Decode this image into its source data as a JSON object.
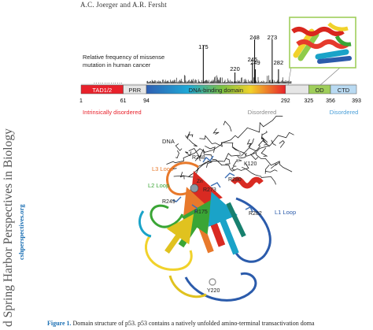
{
  "header": {
    "authors": "A.C. Joerger and A.R. Fersht"
  },
  "sidebar": {
    "journal_fragment": "d Spring Harbor Perspectives in Biology",
    "url_fragment": "cshperspectives.org"
  },
  "figure": {
    "histogram_label_line1": "Relative frequency of missense",
    "histogram_label_line2": "mutation in human cancer",
    "hotspots": [
      {
        "label": "175",
        "residue": 175
      },
      {
        "label": "220",
        "residue": 220
      },
      {
        "label": "245",
        "residue": 245
      },
      {
        "label": "248",
        "residue": 248
      },
      {
        "label": "249",
        "residue": 249
      },
      {
        "label": "273",
        "residue": 273
      },
      {
        "label": "282",
        "residue": 282
      }
    ],
    "domains": [
      {
        "label": "TAD1/2",
        "start": 1,
        "end": 61,
        "color": "#e8212b"
      },
      {
        "label": "PRR",
        "start": 61,
        "end": 94,
        "color": "#e6e6e6"
      },
      {
        "label": "DNA-binding domain",
        "start": 94,
        "end": 292,
        "color": "gradient"
      },
      {
        "label": "",
        "start": 292,
        "end": 325,
        "color": "#e6e6e6"
      },
      {
        "label": "OD",
        "start": 325,
        "end": 356,
        "color": "#9fce5b"
      },
      {
        "label": "CTD",
        "start": 356,
        "end": 393,
        "color": "#b9daf2"
      }
    ],
    "residue_ticks": [
      "1",
      "61",
      "94",
      "292",
      "325",
      "356",
      "393"
    ],
    "region_labels": [
      {
        "text": "Intrinsically disordered",
        "color": "#e8212b"
      },
      {
        "text": "Disordered",
        "color": "#8c8c8c"
      },
      {
        "text": "Disordered",
        "color": "#4a9fd8"
      }
    ],
    "structure_labels": {
      "dna": "DNA",
      "l3": "L3 Loop",
      "l2": "L2 Loop",
      "l1": "L1 Loop",
      "zn": "Zn",
      "r248": "R248",
      "k120": "K120",
      "r280": "R280",
      "r273": "R273",
      "r249": "R249",
      "r175": "R175",
      "r282": "R282",
      "y220": "Y220"
    },
    "colors": {
      "l3": "#e8792b",
      "l2": "#3aa535",
      "l1": "#2b5bab",
      "tad": "#e8212b",
      "inset_border": "#9fce5b"
    }
  },
  "caption": {
    "label": "Figure 1.",
    "text": " Domain structure of p53. p53 contains a natively unfolded amino-terminal transactivation doma"
  }
}
